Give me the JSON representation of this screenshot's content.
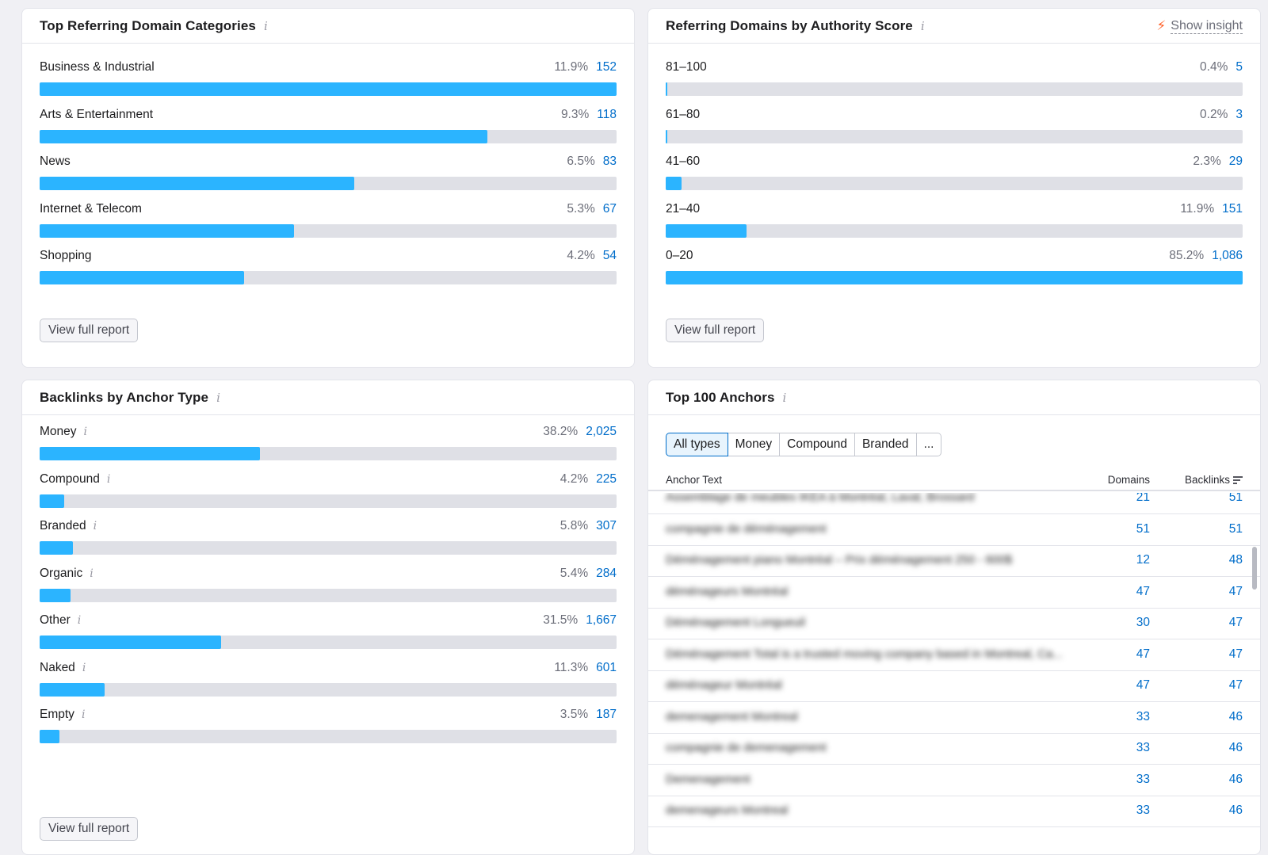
{
  "categories": {
    "title": "Top Referring Domain Categories",
    "items": [
      {
        "label": "Business & Industrial",
        "pct": "11.9%",
        "count": "152",
        "fill": 1.0
      },
      {
        "label": "Arts & Entertainment",
        "pct": "9.3%",
        "count": "118",
        "fill": 0.776
      },
      {
        "label": "News",
        "pct": "6.5%",
        "count": "83",
        "fill": 0.546
      },
      {
        "label": "Internet & Telecom",
        "pct": "5.3%",
        "count": "67",
        "fill": 0.441
      },
      {
        "label": "Shopping",
        "pct": "4.2%",
        "count": "54",
        "fill": 0.355
      }
    ],
    "button": "View full report"
  },
  "authority": {
    "title": "Referring Domains by Authority Score",
    "insight": "Show insight",
    "items": [
      {
        "label": "81–100",
        "pct": "0.4%",
        "count": "5",
        "fill": 0.004
      },
      {
        "label": "61–80",
        "pct": "0.2%",
        "count": "3",
        "fill": 0.002
      },
      {
        "label": "41–60",
        "pct": "2.3%",
        "count": "29",
        "fill": 0.027
      },
      {
        "label": "21–40",
        "pct": "11.9%",
        "count": "151",
        "fill": 0.14
      },
      {
        "label": "0–20",
        "pct": "85.2%",
        "count": "1,086",
        "fill": 1.0
      }
    ],
    "button": "View full report"
  },
  "anchor_types": {
    "title": "Backlinks by Anchor Type",
    "items": [
      {
        "label": "Money",
        "pct": "38.2%",
        "count": "2,025",
        "fill": 0.382
      },
      {
        "label": "Compound",
        "pct": "4.2%",
        "count": "225",
        "fill": 0.042
      },
      {
        "label": "Branded",
        "pct": "5.8%",
        "count": "307",
        "fill": 0.058
      },
      {
        "label": "Organic",
        "pct": "5.4%",
        "count": "284",
        "fill": 0.054
      },
      {
        "label": "Other",
        "pct": "31.5%",
        "count": "1,667",
        "fill": 0.315
      },
      {
        "label": "Naked",
        "pct": "11.3%",
        "count": "601",
        "fill": 0.113
      },
      {
        "label": "Empty",
        "pct": "3.5%",
        "count": "187",
        "fill": 0.035
      }
    ],
    "button": "View full report"
  },
  "top_anchors": {
    "title": "Top 100 Anchors",
    "filters": [
      "All types",
      "Money",
      "Compound",
      "Branded",
      "..."
    ],
    "active_filter": "All types",
    "columns": {
      "anchor": "Anchor Text",
      "domains": "Domains",
      "backlinks": "Backlinks"
    },
    "rows": [
      {
        "anchor": "Assemblage de meubles IKEA à Montréal, Laval, Brossard",
        "domains": "21",
        "backlinks": "51"
      },
      {
        "anchor": "compagnie de déménagement",
        "domains": "51",
        "backlinks": "51"
      },
      {
        "anchor": "Déménagement piano Montréal – Prix déménagement 250 - 600$",
        "domains": "12",
        "backlinks": "48"
      },
      {
        "anchor": "déménageurs Montréal",
        "domains": "47",
        "backlinks": "47"
      },
      {
        "anchor": "Déménagement Longueuil",
        "domains": "30",
        "backlinks": "47"
      },
      {
        "anchor": "Déménagement Total is a trusted moving company based in Montreal, Ca...",
        "domains": "47",
        "backlinks": "47"
      },
      {
        "anchor": "déménageur Montréal",
        "domains": "47",
        "backlinks": "47"
      },
      {
        "anchor": "demenagement Montreal",
        "domains": "33",
        "backlinks": "46"
      },
      {
        "anchor": "compagnie de demenagement",
        "domains": "33",
        "backlinks": "46"
      },
      {
        "anchor": "Demenagement",
        "domains": "33",
        "backlinks": "46"
      },
      {
        "anchor": "demenageurs Montreal",
        "domains": "33",
        "backlinks": "46"
      }
    ]
  },
  "colors": {
    "bar_fill": "#2bb4ff",
    "bar_track": "#dfe0e6",
    "link": "#006dca",
    "insight_bolt": "#ff642d"
  },
  "icons": {
    "info": "info-icon",
    "insight": "lightning-icon",
    "sort": "sort-descending-icon"
  }
}
